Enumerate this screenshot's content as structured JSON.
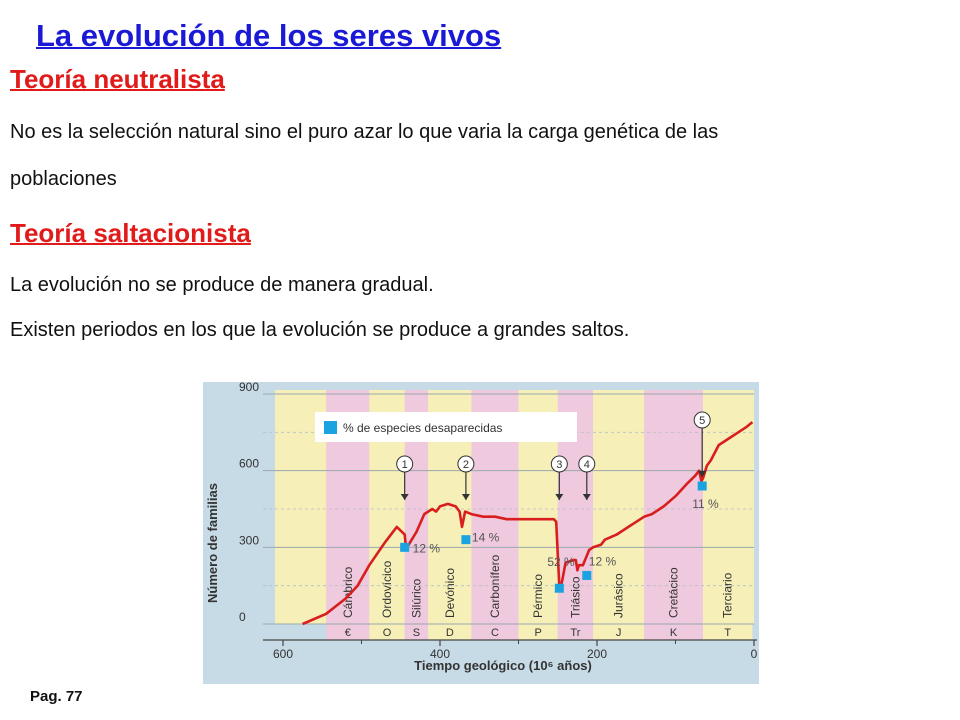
{
  "slide": {
    "title": "La evolución de los seres vivos",
    "section1_title": "Teoría neutralista",
    "section1_line1": "No es la selección natural sino el puro azar lo que varia la carga genética de las",
    "section1_line2": "poblaciones",
    "section2_title": "Teoría saltacionista",
    "section2_line1": "La evolución no se produce de manera gradual.",
    "section2_line2": "Existen periodos en los que la evolución se produce a grandes saltos.",
    "page_ref": "Pag.  77"
  },
  "chart_data": {
    "type": "line",
    "xlabel": "Tiempo geológico (10⁶ años)",
    "ylabel": "Número de familias",
    "xlim": [
      600,
      0
    ],
    "ylim": [
      0,
      900
    ],
    "x_ticks": [
      "600",
      "400",
      "200",
      "0"
    ],
    "y_ticks": [
      "900",
      "600",
      "300",
      "0"
    ],
    "legend": "% de especies desaparecidas",
    "line_color": "#d91e1e",
    "marker_color": "#1aa3e0",
    "periods": [
      {
        "name": "Cámbrico",
        "symbol": "€",
        "start": 545,
        "end": 490,
        "band": "pink"
      },
      {
        "name": "Ordovícico",
        "symbol": "O",
        "start": 490,
        "end": 445,
        "band": "yellow"
      },
      {
        "name": "Silúrico",
        "symbol": "S",
        "start": 445,
        "end": 415,
        "band": "pink"
      },
      {
        "name": "Devónico",
        "symbol": "D",
        "start": 415,
        "end": 360,
        "band": "yellow"
      },
      {
        "name": "Carbonífero",
        "symbol": "C",
        "start": 360,
        "end": 300,
        "band": "pink"
      },
      {
        "name": "Pérmico",
        "symbol": "P",
        "start": 300,
        "end": 250,
        "band": "yellow"
      },
      {
        "name": "Triásico",
        "symbol": "Tr",
        "start": 250,
        "end": 205,
        "band": "pink"
      },
      {
        "name": "Jurásico",
        "symbol": "J",
        "start": 205,
        "end": 140,
        "band": "yellow"
      },
      {
        "name": "Cretácico",
        "symbol": "K",
        "start": 140,
        "end": 65,
        "band": "pink"
      },
      {
        "name": "Terciario",
        "symbol": "T",
        "start": 65,
        "end": 2,
        "band": "yellow"
      }
    ],
    "series": [
      {
        "values": [
          [
            575,
            0
          ],
          [
            545,
            40
          ],
          [
            520,
            100
          ],
          [
            505,
            150
          ],
          [
            490,
            230
          ],
          [
            470,
            320
          ],
          [
            455,
            380
          ],
          [
            445,
            350
          ],
          [
            443,
            290
          ],
          [
            440,
            310
          ],
          [
            430,
            360
          ],
          [
            420,
            430
          ],
          [
            410,
            450
          ],
          [
            405,
            440
          ],
          [
            400,
            460
          ],
          [
            390,
            470
          ],
          [
            380,
            460
          ],
          [
            375,
            440
          ],
          [
            372,
            380
          ],
          [
            368,
            440
          ],
          [
            360,
            430
          ],
          [
            345,
            420
          ],
          [
            330,
            420
          ],
          [
            315,
            410
          ],
          [
            300,
            410
          ],
          [
            255,
            410
          ],
          [
            252,
            400
          ],
          [
            248,
            150
          ],
          [
            245,
            160
          ],
          [
            240,
            240
          ],
          [
            230,
            250
          ],
          [
            227,
            250
          ],
          [
            225,
            210
          ],
          [
            223,
            230
          ],
          [
            218,
            230
          ],
          [
            210,
            290
          ],
          [
            205,
            300
          ],
          [
            195,
            310
          ],
          [
            190,
            330
          ],
          [
            175,
            350
          ],
          [
            160,
            380
          ],
          [
            150,
            400
          ],
          [
            140,
            420
          ],
          [
            130,
            430
          ],
          [
            115,
            460
          ],
          [
            100,
            500
          ],
          [
            85,
            550
          ],
          [
            75,
            580
          ],
          [
            70,
            600
          ],
          [
            67,
            560
          ],
          [
            65,
            570
          ],
          [
            60,
            620
          ],
          [
            55,
            640
          ],
          [
            45,
            700
          ],
          [
            30,
            730
          ],
          [
            20,
            750
          ],
          [
            10,
            770
          ],
          [
            2,
            790
          ]
        ]
      }
    ],
    "extinctions": [
      {
        "n": "1",
        "t": 445,
        "marker_y": 300,
        "label": "12 %"
      },
      {
        "n": "2",
        "t": 367,
        "marker_y": 330,
        "label": "14 %"
      },
      {
        "n": "3",
        "t": 248,
        "marker_y": 140,
        "label": "52 %"
      },
      {
        "n": "4",
        "t": 213,
        "marker_y": 190,
        "label": "12 %"
      },
      {
        "n": "5",
        "t": 66,
        "marker_y": 540,
        "label": "11 %"
      }
    ]
  }
}
